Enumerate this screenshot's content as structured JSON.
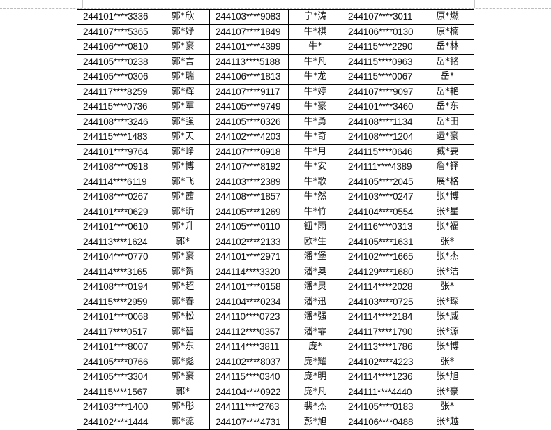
{
  "table": {
    "rows": [
      [
        "244101****3336",
        "郭*欣",
        "244103****9083",
        "宁*涛",
        "244107****3011",
        "原*燃"
      ],
      [
        "244107****5365",
        "郭*妤",
        "244107****1849",
        "牛*棋",
        "244106****0130",
        "原*楠"
      ],
      [
        "244106****0810",
        "郭*豪",
        "244101****4399",
        "牛*",
        "244115****2290",
        "岳*林"
      ],
      [
        "244105****0238",
        "郭*言",
        "244113****5188",
        "牛*凡",
        "244115****0963",
        "岳*铭"
      ],
      [
        "244105****0306",
        "郭*瑞",
        "244106****1813",
        "牛*龙",
        "244115****0067",
        "岳*"
      ],
      [
        "244117****8259",
        "郭*辉",
        "244107****9117",
        "牛*婷",
        "244107****9097",
        "岳*艳"
      ],
      [
        "244115****0736",
        "郭*军",
        "244105****9749",
        "牛*豪",
        "244101****3460",
        "岳*东"
      ],
      [
        "244108****3246",
        "郭*强",
        "244105****0326",
        "牛*勇",
        "244108****1134",
        "岳*田"
      ],
      [
        "244115****1483",
        "郭*天",
        "244102****4203",
        "牛*奇",
        "244108****1204",
        "运*豪"
      ],
      [
        "244101****9764",
        "郭*峥",
        "244107****0918",
        "牛*月",
        "244115****0646",
        "臧*要"
      ],
      [
        "244108****0918",
        "郭*博",
        "244107****8192",
        "牛*安",
        "244111****4389",
        "詹*铎"
      ],
      [
        "244114****6119",
        "郭*飞",
        "244103****2389",
        "牛*歌",
        "244105****2045",
        "展*格"
      ],
      [
        "244108****0267",
        "郭*茜",
        "244108****1857",
        "牛*然",
        "244103****0247",
        "张*博"
      ],
      [
        "244101****0629",
        "郭*昕",
        "244105****1269",
        "牛*竹",
        "244104****0554",
        "张*星"
      ],
      [
        "244101****0610",
        "郭*升",
        "244105****0110",
        "钮*雨",
        "244116****0313",
        "张*福"
      ],
      [
        "244113****1624",
        "郭*",
        "244102****2133",
        "欧*生",
        "244105****1631",
        "张*"
      ],
      [
        "244104****0770",
        "郭*豪",
        "244101****2971",
        "潘*堡",
        "244102****1665",
        "张*杰"
      ],
      [
        "244114****3165",
        "郭*贺",
        "244114****3320",
        "潘*奥",
        "244129****1680",
        "张*洁"
      ],
      [
        "244108****0194",
        "郭*超",
        "244101****0158",
        "潘*灵",
        "244114****2028",
        "张*"
      ],
      [
        "244115****2959",
        "郭*春",
        "244104****0234",
        "潘*迅",
        "244103****0725",
        "张*琛"
      ],
      [
        "244101****0068",
        "郭*松",
        "244110****0723",
        "潘*强",
        "244114****2184",
        "张*威"
      ],
      [
        "244117****0517",
        "郭*智",
        "244112****0357",
        "潘*霏",
        "244117****1790",
        "张*源"
      ],
      [
        "244101****8007",
        "郭*东",
        "244114****3811",
        "庞*",
        "244113****1786",
        "张*博"
      ],
      [
        "244105****0766",
        "郭*彪",
        "244102****8037",
        "庞*耀",
        "244102****4223",
        "张*"
      ],
      [
        "244105****3304",
        "郭*豪",
        "244115****0340",
        "庞*明",
        "244114****1236",
        "张*旭"
      ],
      [
        "244115****1567",
        "郭*",
        "244104****0922",
        "庞*凡",
        "244111****4440",
        "张*豪"
      ],
      [
        "244103****1400",
        "郭*彤",
        "244111****2763",
        "裴*杰",
        "244105****0183",
        "张*"
      ],
      [
        "244102****1444",
        "郭*蕊",
        "244107****4731",
        "彭*旭",
        "244106****0488",
        "张*越"
      ]
    ]
  }
}
